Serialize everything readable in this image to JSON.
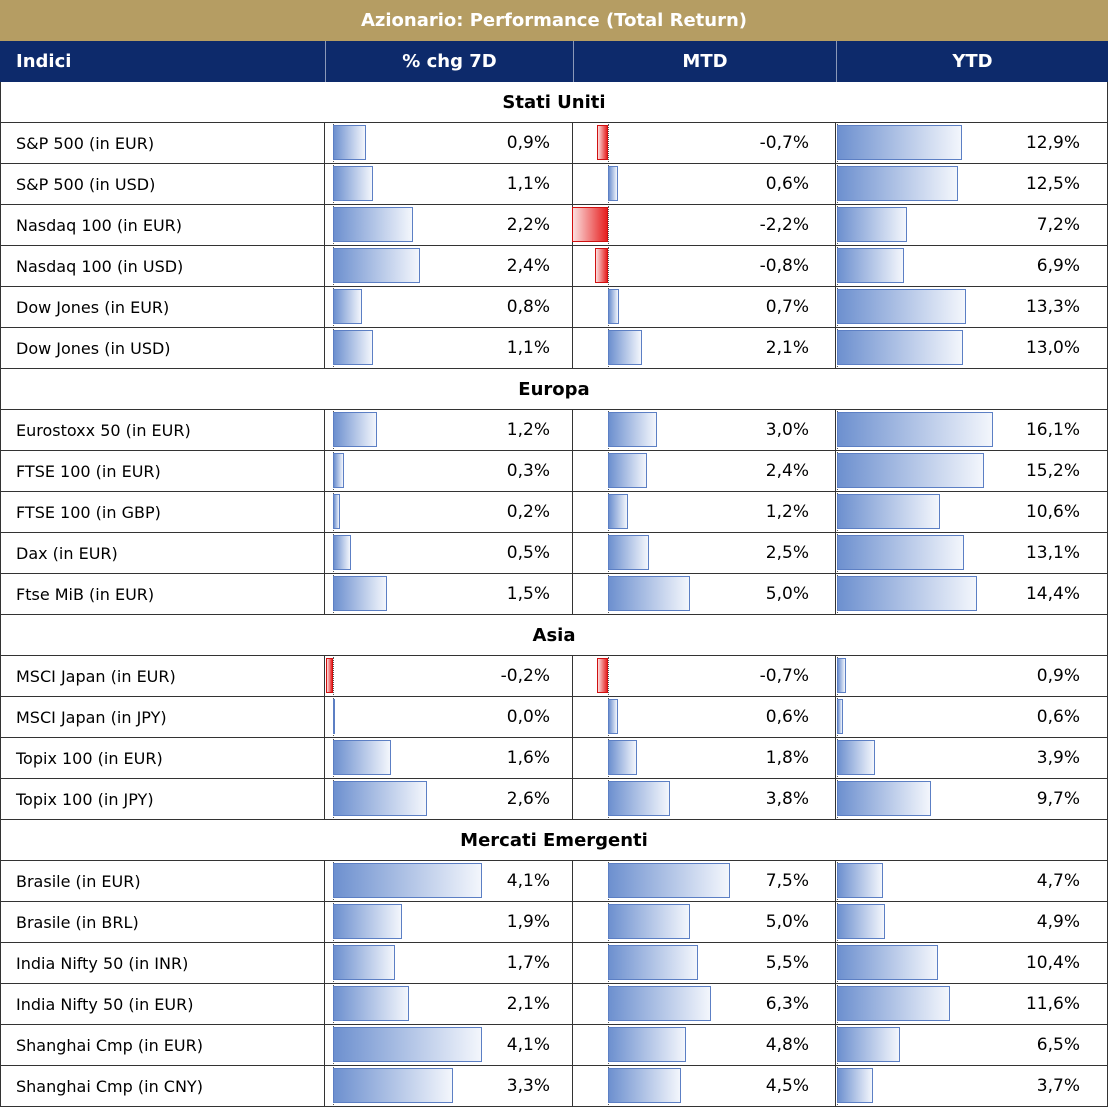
{
  "title": "Azionario: Performance (Total Return)",
  "headers": [
    "Indici",
    "% chg 7D",
    "MTD",
    "YTD"
  ],
  "colors": {
    "title_bg": "#b59d63",
    "header_bg": "#0d2a6b",
    "positive_bar": "#6d90cf",
    "negative_bar": "#e62020"
  },
  "sections": [
    {
      "name": "Stati Uniti",
      "rows": [
        {
          "name": "S&P 500 (in EUR)",
          "chg7d": 0.9,
          "chg7d_text": "0,9%",
          "mtd": -0.7,
          "mtd_text": "-0,7%",
          "ytd": 12.9,
          "ytd_text": "12,9%"
        },
        {
          "name": "S&P 500 (in USD)",
          "chg7d": 1.1,
          "chg7d_text": "1,1%",
          "mtd": 0.6,
          "mtd_text": "0,6%",
          "ytd": 12.5,
          "ytd_text": "12,5%"
        },
        {
          "name": "Nasdaq 100 (in EUR)",
          "chg7d": 2.2,
          "chg7d_text": "2,2%",
          "mtd": -2.2,
          "mtd_text": "-2,2%",
          "ytd": 7.2,
          "ytd_text": "7,2%"
        },
        {
          "name": "Nasdaq 100 (in USD)",
          "chg7d": 2.4,
          "chg7d_text": "2,4%",
          "mtd": -0.8,
          "mtd_text": "-0,8%",
          "ytd": 6.9,
          "ytd_text": "6,9%"
        },
        {
          "name": "Dow Jones (in EUR)",
          "chg7d": 0.8,
          "chg7d_text": "0,8%",
          "mtd": 0.7,
          "mtd_text": "0,7%",
          "ytd": 13.3,
          "ytd_text": "13,3%"
        },
        {
          "name": "Dow Jones (in USD)",
          "chg7d": 1.1,
          "chg7d_text": "1,1%",
          "mtd": 2.1,
          "mtd_text": "2,1%",
          "ytd": 13.0,
          "ytd_text": "13,0%"
        }
      ]
    },
    {
      "name": "Europa",
      "rows": [
        {
          "name": "Eurostoxx 50 (in EUR)",
          "chg7d": 1.2,
          "chg7d_text": "1,2%",
          "mtd": 3.0,
          "mtd_text": "3,0%",
          "ytd": 16.1,
          "ytd_text": "16,1%"
        },
        {
          "name": "FTSE 100 (in EUR)",
          "chg7d": 0.3,
          "chg7d_text": "0,3%",
          "mtd": 2.4,
          "mtd_text": "2,4%",
          "ytd": 15.2,
          "ytd_text": "15,2%"
        },
        {
          "name": "FTSE 100 (in GBP)",
          "chg7d": 0.2,
          "chg7d_text": "0,2%",
          "mtd": 1.2,
          "mtd_text": "1,2%",
          "ytd": 10.6,
          "ytd_text": "10,6%"
        },
        {
          "name": "Dax (in EUR)",
          "chg7d": 0.5,
          "chg7d_text": "0,5%",
          "mtd": 2.5,
          "mtd_text": "2,5%",
          "ytd": 13.1,
          "ytd_text": "13,1%"
        },
        {
          "name": "Ftse MiB (in EUR)",
          "chg7d": 1.5,
          "chg7d_text": "1,5%",
          "mtd": 5.0,
          "mtd_text": "5,0%",
          "ytd": 14.4,
          "ytd_text": "14,4%"
        }
      ]
    },
    {
      "name": "Asia",
      "rows": [
        {
          "name": "MSCI Japan (in EUR)",
          "chg7d": -0.2,
          "chg7d_text": "-0,2%",
          "mtd": -0.7,
          "mtd_text": "-0,7%",
          "ytd": 0.9,
          "ytd_text": "0,9%"
        },
        {
          "name": "MSCI Japan (in JPY)",
          "chg7d": 0.0,
          "chg7d_text": "0,0%",
          "mtd": 0.6,
          "mtd_text": "0,6%",
          "ytd": 0.6,
          "ytd_text": "0,6%"
        },
        {
          "name": "Topix 100 (in EUR)",
          "chg7d": 1.6,
          "chg7d_text": "1,6%",
          "mtd": 1.8,
          "mtd_text": "1,8%",
          "ytd": 3.9,
          "ytd_text": "3,9%"
        },
        {
          "name": "Topix 100 (in JPY)",
          "chg7d": 2.6,
          "chg7d_text": "2,6%",
          "mtd": 3.8,
          "mtd_text": "3,8%",
          "ytd": 9.7,
          "ytd_text": "9,7%"
        }
      ]
    },
    {
      "name": "Mercati Emergenti",
      "rows": [
        {
          "name": "Brasile (in EUR)",
          "chg7d": 4.1,
          "chg7d_text": "4,1%",
          "mtd": 7.5,
          "mtd_text": "7,5%",
          "ytd": 4.7,
          "ytd_text": "4,7%"
        },
        {
          "name": "Brasile (in BRL)",
          "chg7d": 1.9,
          "chg7d_text": "1,9%",
          "mtd": 5.0,
          "mtd_text": "5,0%",
          "ytd": 4.9,
          "ytd_text": "4,9%"
        },
        {
          "name": "India Nifty 50 (in INR)",
          "chg7d": 1.7,
          "chg7d_text": "1,7%",
          "mtd": 5.5,
          "mtd_text": "5,5%",
          "ytd": 10.4,
          "ytd_text": "10,4%"
        },
        {
          "name": "India Nifty 50 (in EUR)",
          "chg7d": 2.1,
          "chg7d_text": "2,1%",
          "mtd": 6.3,
          "mtd_text": "6,3%",
          "ytd": 11.6,
          "ytd_text": "11,6%"
        },
        {
          "name": "Shanghai Cmp (in EUR)",
          "chg7d": 4.1,
          "chg7d_text": "4,1%",
          "mtd": 4.8,
          "mtd_text": "4,8%",
          "ytd": 6.5,
          "ytd_text": "6,5%"
        },
        {
          "name": "Shanghai Cmp (in CNY)",
          "chg7d": 3.3,
          "chg7d_text": "3,3%",
          "mtd": 4.5,
          "mtd_text": "4,5%",
          "ytd": 3.7,
          "ytd_text": "3,7%"
        }
      ]
    }
  ]
}
